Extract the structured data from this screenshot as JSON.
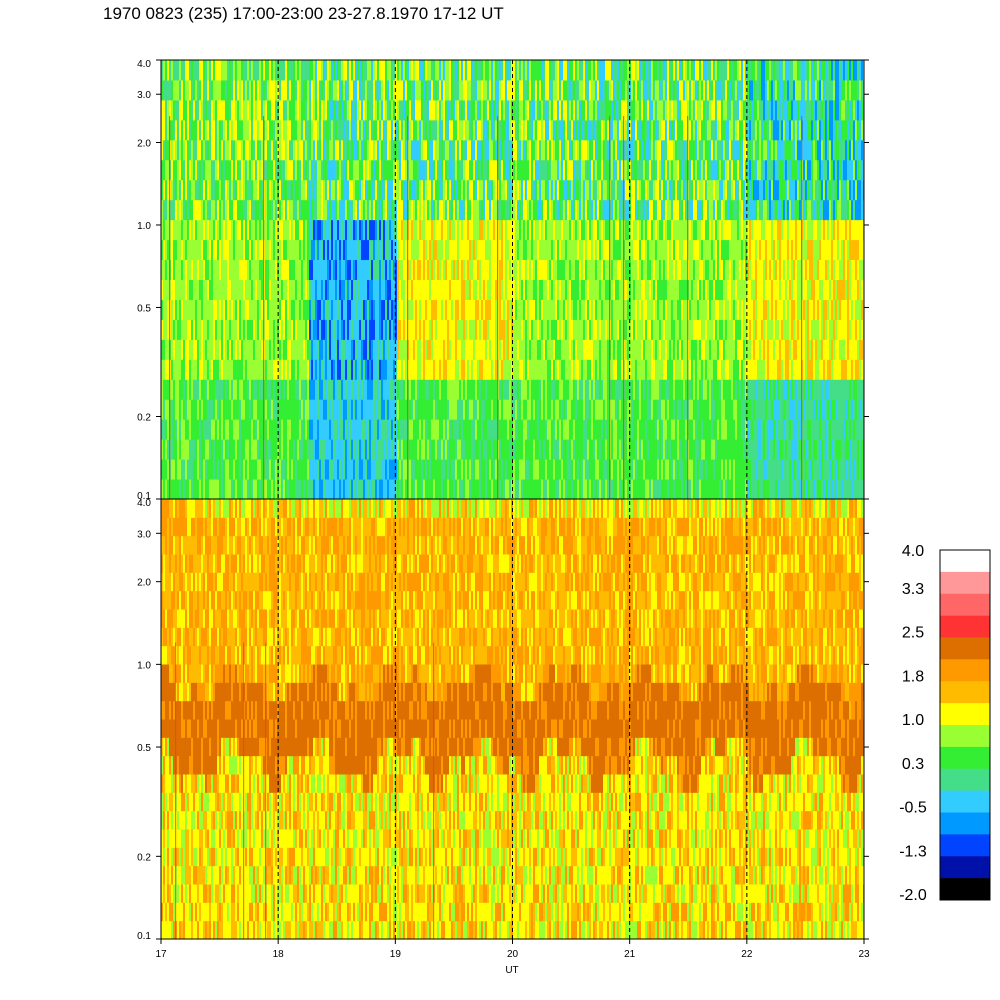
{
  "title": "1970 0823 (235) 17:00-23:00 23-27.8.1970  17-12 UT",
  "chart_data": [
    {
      "type": "heatmap",
      "panel": "upper",
      "x_range": [
        17,
        23
      ],
      "y_range": [
        0.1,
        4.0
      ],
      "y_scale": "log",
      "y_ticks": [
        "4.0",
        "3.0",
        "2.0",
        "1.0",
        "0.5",
        "0.2",
        "0.1"
      ],
      "grid_x_dashed": [
        18,
        19,
        20,
        21,
        22
      ],
      "bands": [
        {
          "x": [
            17.0,
            18.25
          ],
          "low": "green",
          "mid": "yellow-green",
          "high": "green-teal"
        },
        {
          "x": [
            18.25,
            19.0
          ],
          "low": "light-blue",
          "mid": "teal-blue",
          "high": "green"
        },
        {
          "x": [
            19.0,
            20.0
          ],
          "low": "green",
          "mid": "yellow",
          "high": "green"
        },
        {
          "x": [
            20.0,
            22.0
          ],
          "low": "green",
          "mid": "yellow-green",
          "high": "green"
        },
        {
          "x": [
            22.0,
            23.0
          ],
          "low": "teal",
          "mid": "yellow",
          "high": "green-blue"
        }
      ]
    },
    {
      "type": "heatmap",
      "panel": "lower",
      "x_range": [
        17,
        23
      ],
      "y_range": [
        0.1,
        4.0
      ],
      "y_scale": "log",
      "y_ticks": [
        "4.0",
        "3.0",
        "2.0",
        "1.0",
        "0.5",
        "0.2",
        "0.1"
      ],
      "x_ticks": [
        "17",
        "18",
        "19",
        "20",
        "21",
        "22",
        "23"
      ],
      "xlabel": "UT",
      "grid_x_dashed": [
        18,
        19,
        20,
        21,
        22
      ],
      "bands": [
        {
          "y": [
            0.1,
            0.45
          ],
          "color": "orange-yellow"
        },
        {
          "y": [
            0.45,
            0.85
          ],
          "color": "dark-orange"
        },
        {
          "y": [
            0.85,
            4.0
          ],
          "color": "orange-yellow"
        }
      ]
    }
  ],
  "colorbar": {
    "labels": [
      "4.0",
      "3.3",
      "2.5",
      "1.8",
      "1.0",
      "0.3",
      "-0.5",
      "-1.3",
      "-2.0"
    ],
    "colors": [
      "#ffffff",
      "#ff9999",
      "#ff6666",
      "#ff3333",
      "#dd6f00",
      "#ff9900",
      "#ffbb00",
      "#ffff00",
      "#99ff33",
      "#33ee33",
      "#44dd88",
      "#33ccff",
      "#0099ff",
      "#0044ff",
      "#0011aa",
      "#000000"
    ]
  },
  "palette": {
    "black": "#000000",
    "navy": "#0011aa",
    "blue": "#0044ff",
    "mid-blue": "#0099ff",
    "light-blue": "#33ccff",
    "teal": "#44dd88",
    "green": "#33ee33",
    "yellow-green": "#99ff33",
    "yellow": "#ffff00",
    "amber": "#ffbb00",
    "orange": "#ff9900",
    "dark-orange": "#dd6f00",
    "red": "#ff3333"
  }
}
